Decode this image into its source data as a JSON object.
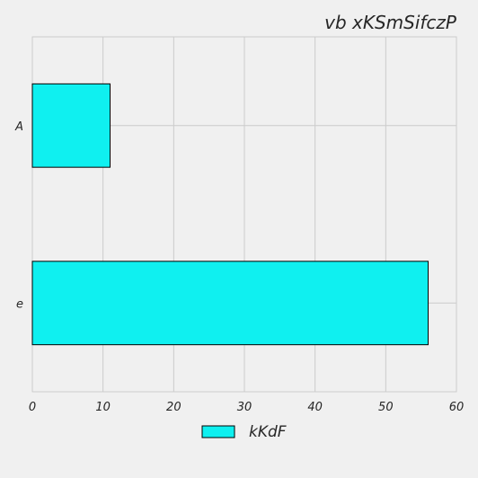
{
  "chart_data": {
    "type": "bar",
    "orientation": "horizontal",
    "title": "vb xKSmSifczP",
    "xlabel": "",
    "ylabel": "",
    "categories": [
      "A",
      "e"
    ],
    "series": [
      {
        "name": "kKdF",
        "values": [
          11,
          56
        ],
        "color": "#0ff0f0"
      }
    ],
    "xlim": [
      0,
      60
    ],
    "xticks": [
      0,
      10,
      20,
      30,
      40,
      50,
      60
    ],
    "grid": true,
    "legend_position": "bottom-center"
  },
  "colors": {
    "background": "#f0f0f0",
    "plot_background": "#f0f0f0",
    "grid": "#cbcbcb",
    "bar_edge": "#000000",
    "text": "#262626"
  }
}
